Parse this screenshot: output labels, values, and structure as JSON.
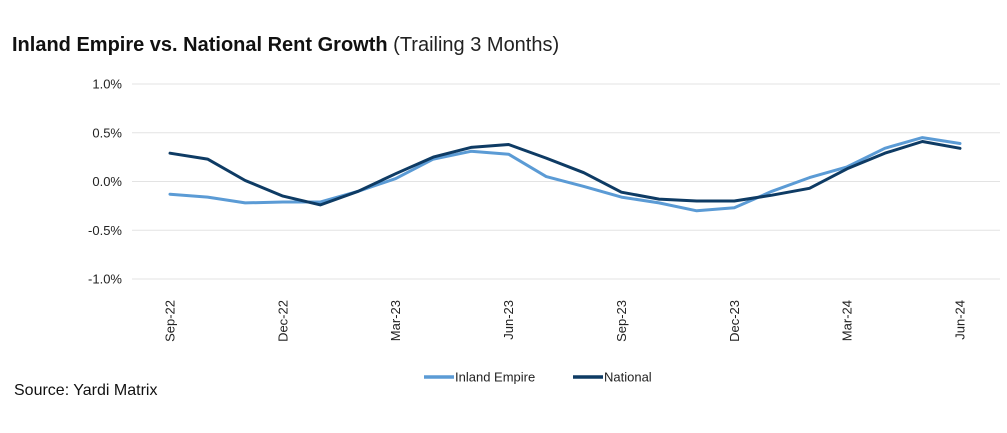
{
  "header": {
    "title_main": "Inland Empire vs. National Rent Growth",
    "title_sub": "(Trailing 3 Months)"
  },
  "source": "Source: Yardi Matrix",
  "chart_data": {
    "type": "line",
    "x": [
      "Sep-22",
      "Oct-22",
      "Nov-22",
      "Dec-22",
      "Jan-23",
      "Feb-23",
      "Mar-23",
      "Apr-23",
      "May-23",
      "Jun-23",
      "Jul-23",
      "Aug-23",
      "Sep-23",
      "Oct-23",
      "Nov-23",
      "Dec-23",
      "Jan-24",
      "Feb-24",
      "Mar-24",
      "Apr-24",
      "May-24",
      "Jun-24"
    ],
    "x_tick_labels": [
      "Sep-22",
      "Dec-22",
      "Mar-23",
      "Jun-23",
      "Sep-23",
      "Dec-23",
      "Mar-24",
      "Jun-24"
    ],
    "x_tick_indices": [
      0,
      3,
      6,
      9,
      12,
      15,
      18,
      21
    ],
    "y_ticks": [
      1.0,
      0.5,
      0.0,
      -0.5,
      -1.0
    ],
    "y_tick_labels": [
      "1.0%",
      "0.5%",
      "0.0%",
      "-0.5%",
      "-1.0%"
    ],
    "ylim": [
      -1.0,
      1.0
    ],
    "grid": true,
    "legend_position": "bottom",
    "series": [
      {
        "name": "Inland Empire",
        "color": "#5b9bd5",
        "values": [
          -0.13,
          -0.16,
          -0.22,
          -0.21,
          -0.21,
          -0.1,
          0.03,
          0.23,
          0.31,
          0.28,
          0.05,
          -0.05,
          -0.16,
          -0.22,
          -0.3,
          -0.27,
          -0.1,
          0.04,
          0.15,
          0.34,
          0.45,
          0.39
        ]
      },
      {
        "name": "National",
        "color": "#0e3b64",
        "values": [
          0.29,
          0.23,
          0.01,
          -0.15,
          -0.24,
          -0.1,
          0.08,
          0.25,
          0.35,
          0.38,
          0.24,
          0.09,
          -0.11,
          -0.18,
          -0.2,
          -0.2,
          -0.14,
          -0.07,
          0.13,
          0.29,
          0.41,
          0.34
        ]
      }
    ]
  }
}
